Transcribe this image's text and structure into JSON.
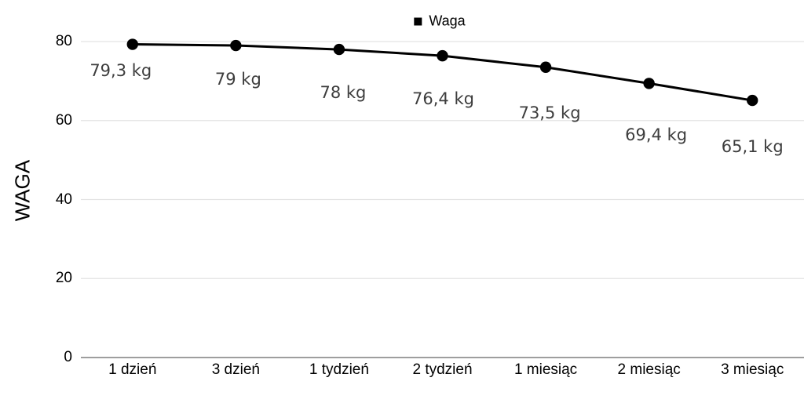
{
  "chart_data": {
    "type": "line",
    "title": "",
    "categories": [
      "1 dzień",
      "3 dzień",
      "1 tydzień",
      "2 tydzień",
      "1 miesiąc",
      "2 miesiąc",
      "3 miesiąc"
    ],
    "series": [
      {
        "name": "Waga",
        "values": [
          79.3,
          79,
          78,
          76.4,
          73.5,
          69.4,
          65.1
        ]
      }
    ],
    "data_labels": [
      "79,3 kg",
      "79 kg",
      "78 kg",
      "76,4 kg",
      "73,5 kg",
      "69,4 kg",
      "65,1 kg"
    ],
    "xlabel": "",
    "ylabel": "WAGA",
    "ylim": [
      0,
      80
    ],
    "yticks": [
      0,
      20,
      40,
      60,
      80
    ],
    "ytick_labels": [
      "0",
      "20",
      "40",
      "60",
      "80"
    ],
    "grid": true,
    "legend": {
      "position": "top-center",
      "entries": [
        "Waga"
      ],
      "marker": "square"
    },
    "colors": {
      "series": "#000000",
      "marker": "#000000",
      "gridline": "#e3e3e3",
      "axis_line": "#9e9e9e",
      "data_label_text": "#3d3d3d",
      "tick_text": "#000000",
      "background": "#ffffff"
    }
  }
}
